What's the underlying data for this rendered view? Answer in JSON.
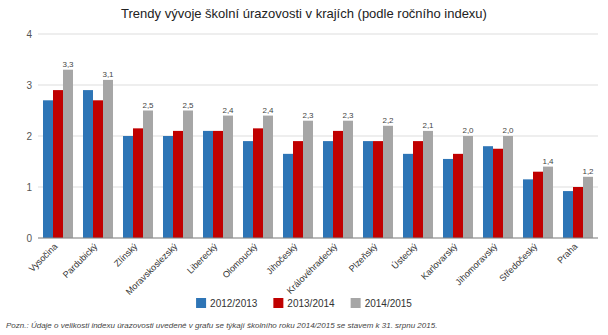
{
  "chart_data": {
    "type": "bar",
    "title": "Trendy vývoje školní úrazovosti v krajích (podle ročního indexu)",
    "footnote": "Pozn.: Údaje o velikosti indexu úrazovosti uvedené v grafu se týkají školního roku 2014/2015 se stavem k 31. srpnu 2015.",
    "categories": [
      "Vysočina",
      "Pardubický",
      "Zlínský",
      "Moravskoslezský",
      "Liberecký",
      "Olomoucký",
      "Jihočeský",
      "Královéhradecký",
      "Plzeňský",
      "Ústecký",
      "Karlovarský",
      "Jihomoravský",
      "Středočeský",
      "Praha"
    ],
    "series": [
      {
        "name": "2012/2013",
        "color": "#2E75B6",
        "values": [
          2.7,
          2.9,
          2.0,
          2.0,
          2.1,
          1.9,
          1.65,
          1.9,
          1.9,
          1.65,
          1.55,
          1.8,
          1.15,
          0.92
        ]
      },
      {
        "name": "2013/2014",
        "color": "#C00000",
        "values": [
          2.9,
          2.7,
          2.15,
          2.1,
          2.1,
          2.15,
          1.9,
          2.1,
          1.9,
          1.9,
          1.65,
          1.75,
          1.3,
          1.0
        ]
      },
      {
        "name": "2014/2015",
        "color": "#A6A6A6",
        "values": [
          3.3,
          3.1,
          2.5,
          2.5,
          2.4,
          2.4,
          2.3,
          2.3,
          2.2,
          2.1,
          2.0,
          2.0,
          1.4,
          1.2
        ],
        "value_labels": [
          "3,3",
          "3,1",
          "2,5",
          "2,5",
          "2,4",
          "2,4",
          "2,3",
          "2,3",
          "2,2",
          "2,1",
          "2,0",
          "2,0",
          "1,4",
          "1,2"
        ]
      }
    ],
    "ylim": [
      0,
      4
    ],
    "yticks": [
      0,
      1,
      2,
      3,
      4
    ],
    "grid": true,
    "legend": "bottom"
  }
}
